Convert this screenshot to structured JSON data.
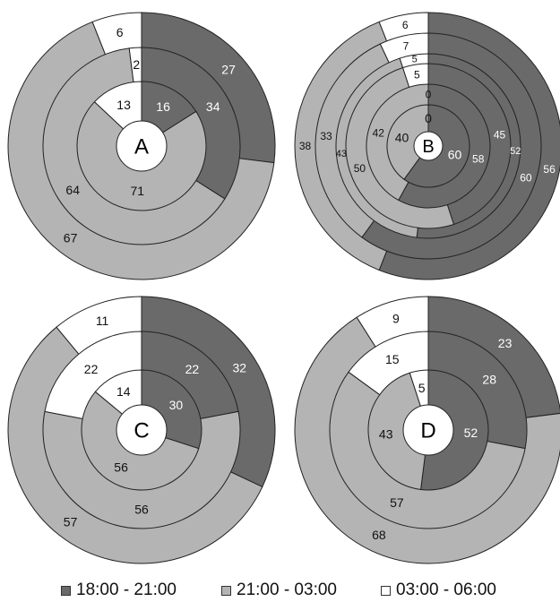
{
  "colors": {
    "evening": "#6a6a6a",
    "night": "#b4b4b4",
    "early_morning": "#ffffff",
    "outline": "#222222",
    "label_dark": "#111111",
    "label_light": "#ffffff"
  },
  "legend": [
    {
      "label": "18:00 - 21:00",
      "color": "#6a6a6a"
    },
    {
      "label": "21:00 - 03:00",
      "color": "#b4b4b4"
    },
    {
      "label": "03:00 - 06:00",
      "color": "#ffffff"
    }
  ],
  "chart_data": [
    {
      "type": "pie",
      "panel": "A",
      "categories": [
        "18:00 - 21:00",
        "21:00 - 03:00",
        "03:00 - 06:00"
      ],
      "rings": [
        {
          "values": [
            16,
            71,
            13
          ]
        },
        {
          "values": [
            34,
            64,
            2
          ]
        },
        {
          "values": [
            27,
            67,
            6
          ]
        }
      ]
    },
    {
      "type": "pie",
      "panel": "B",
      "categories": [
        "18:00 - 21:00",
        "21:00 - 03:00",
        "03:00 - 06:00"
      ],
      "rings": [
        {
          "values": [
            60,
            40,
            0
          ]
        },
        {
          "values": [
            58,
            42,
            0
          ]
        },
        {
          "values": [
            45,
            50,
            5
          ]
        },
        {
          "values": [
            52,
            43,
            5
          ]
        },
        {
          "values": [
            60,
            33,
            7
          ]
        },
        {
          "values": [
            56,
            38,
            6
          ]
        }
      ]
    },
    {
      "type": "pie",
      "panel": "C",
      "categories": [
        "18:00 - 21:00",
        "21:00 - 03:00",
        "03:00 - 06:00"
      ],
      "rings": [
        {
          "values": [
            30,
            56,
            14
          ]
        },
        {
          "values": [
            22,
            56,
            22
          ]
        },
        {
          "values": [
            32,
            57,
            11
          ]
        }
      ]
    },
    {
      "type": "pie",
      "panel": "D",
      "categories": [
        "18:00 - 21:00",
        "21:00 - 03:00",
        "03:00 - 06:00"
      ],
      "rings": [
        {
          "values": [
            52,
            43,
            5
          ]
        },
        {
          "values": [
            28,
            57,
            15
          ]
        },
        {
          "values": [
            23,
            68,
            9
          ]
        }
      ]
    }
  ]
}
